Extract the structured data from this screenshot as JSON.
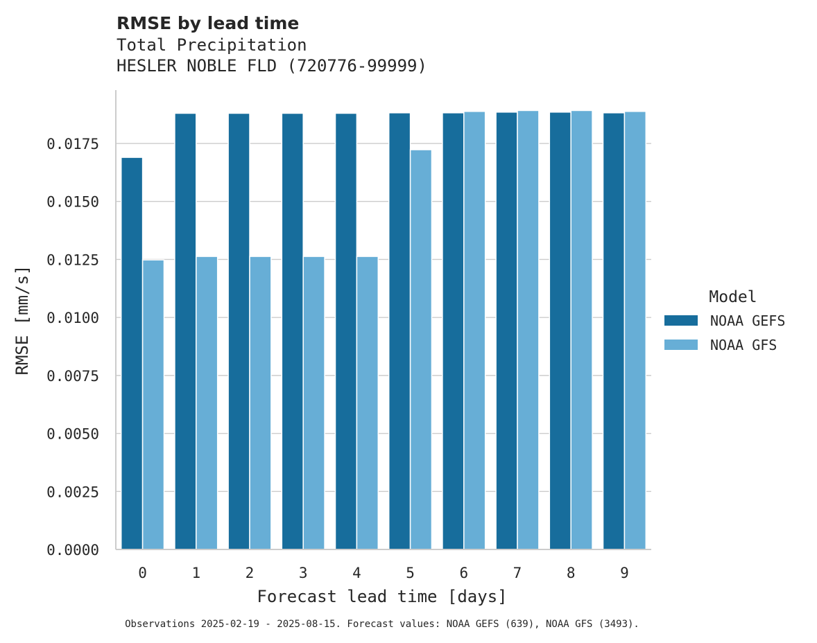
{
  "chart_data": {
    "type": "bar",
    "title": "RMSE by lead time",
    "subtitle_lines": [
      "Total Precipitation",
      "HESLER NOBLE FLD (720776-99999)"
    ],
    "xlabel": "Forecast lead time [days]",
    "ylabel": "RMSE [mm/s]",
    "categories": [
      "0",
      "1",
      "2",
      "3",
      "4",
      "5",
      "6",
      "7",
      "8",
      "9"
    ],
    "ylim": [
      0,
      0.0198
    ],
    "yticks": [
      0,
      0.0025,
      0.005,
      0.0075,
      0.01,
      0.0125,
      0.015,
      0.0175
    ],
    "ytick_labels": [
      "0.0000",
      "0.0025",
      "0.0050",
      "0.0075",
      "0.0100",
      "0.0125",
      "0.0150",
      "0.0175"
    ],
    "grid": "y",
    "legend": {
      "title": "Model",
      "placement": "right"
    },
    "series": [
      {
        "name": "NOAA GEFS",
        "color": "#176d9c",
        "values": [
          0.0169,
          0.0188,
          0.0188,
          0.0188,
          0.0188,
          0.01882,
          0.01882,
          0.01885,
          0.01885,
          0.01882
        ]
      },
      {
        "name": "NOAA GFS",
        "color": "#67aed6",
        "values": [
          0.01248,
          0.01263,
          0.01263,
          0.01263,
          0.01263,
          0.01723,
          0.01888,
          0.01892,
          0.01892,
          0.01888
        ]
      }
    ],
    "footnote": "Observations 2025-02-19 - 2025-08-15. Forecast values: NOAA GEFS (639), NOAA GFS (3493)."
  }
}
